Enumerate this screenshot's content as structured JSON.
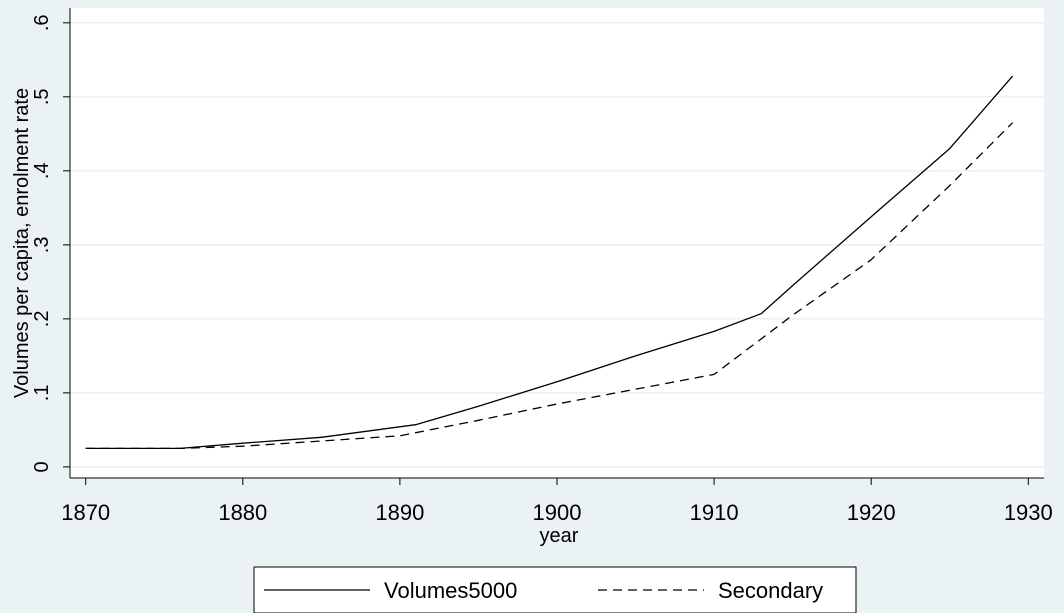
{
  "chart_data": {
    "type": "line",
    "xlabel": "year",
    "ylabel": "Volumes per capita, enrolment rate",
    "xlim": [
      1869,
      1931
    ],
    "ylim": [
      -0.015,
      0.62
    ],
    "x_ticks": [
      1870,
      1880,
      1890,
      1900,
      1910,
      1920,
      1930
    ],
    "y_ticks": [
      0,
      0.1,
      0.2,
      0.3,
      0.4,
      0.5,
      0.6
    ],
    "y_tick_labels": [
      "0",
      ".1",
      ".2",
      ".3",
      ".4",
      ".5",
      ".6"
    ],
    "grid": true,
    "legend_position": "bottom",
    "series": [
      {
        "name": "Volumes5000",
        "style": "solid",
        "x": [
          1870,
          1876,
          1880,
          1885,
          1891,
          1895,
          1900,
          1905,
          1910,
          1913,
          1915,
          1920,
          1925,
          1929
        ],
        "y": [
          0.025,
          0.025,
          0.032,
          0.04,
          0.057,
          0.082,
          0.115,
          0.15,
          0.183,
          0.207,
          0.245,
          0.338,
          0.43,
          0.528
        ]
      },
      {
        "name": "Secondary",
        "style": "dashed",
        "x": [
          1870,
          1876,
          1880,
          1885,
          1890,
          1895,
          1900,
          1905,
          1910,
          1915,
          1920,
          1925,
          1929
        ],
        "y": [
          0.025,
          0.025,
          0.028,
          0.035,
          0.042,
          0.063,
          0.085,
          0.105,
          0.125,
          0.205,
          0.28,
          0.38,
          0.465
        ]
      }
    ]
  }
}
